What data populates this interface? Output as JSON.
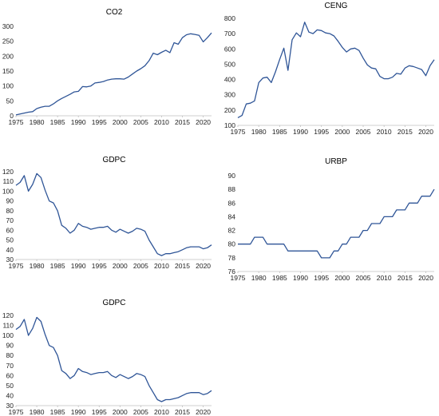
{
  "colors": {
    "series": "#2f5597",
    "axis": "#bfbfbf",
    "text": "#222222"
  },
  "chart_data": [
    {
      "type": "line",
      "title": "CO2",
      "xlim": [
        1975,
        2022
      ],
      "ylim": [
        0,
        300
      ],
      "xticks": [
        1975,
        1980,
        1985,
        1990,
        1995,
        2000,
        2005,
        2010,
        2015,
        2020
      ],
      "yticks": [
        0,
        50,
        100,
        150,
        200,
        250,
        300
      ],
      "x": [
        1975,
        1976,
        1977,
        1978,
        1979,
        1980,
        1981,
        1982,
        1983,
        1984,
        1985,
        1986,
        1987,
        1988,
        1989,
        1990,
        1991,
        1992,
        1993,
        1994,
        1995,
        1996,
        1997,
        1998,
        1999,
        2000,
        2001,
        2002,
        2003,
        2004,
        2005,
        2006,
        2007,
        2008,
        2009,
        2010,
        2011,
        2012,
        2013,
        2014,
        2015,
        2016,
        2017,
        2018,
        2019,
        2020,
        2021,
        2022
      ],
      "values": [
        3,
        6,
        9,
        12,
        14,
        24,
        29,
        32,
        32,
        40,
        50,
        58,
        65,
        72,
        80,
        82,
        98,
        97,
        100,
        110,
        112,
        115,
        120,
        123,
        124,
        124,
        123,
        130,
        140,
        150,
        158,
        168,
        185,
        210,
        205,
        213,
        220,
        212,
        245,
        240,
        262,
        272,
        275,
        273,
        270,
        248,
        262,
        278
      ]
    },
    {
      "type": "line",
      "title": "CENG",
      "xlim": [
        1975,
        2022
      ],
      "ylim": [
        100,
        800
      ],
      "xticks": [
        1975,
        1980,
        1985,
        1990,
        1995,
        2000,
        2005,
        2010,
        2015,
        2020
      ],
      "yticks": [
        100,
        200,
        300,
        400,
        500,
        600,
        700,
        800
      ],
      "x": [
        1975,
        1976,
        1977,
        1978,
        1979,
        1980,
        1981,
        1982,
        1983,
        1984,
        1985,
        1986,
        1987,
        1988,
        1989,
        1990,
        1991,
        1992,
        1993,
        1994,
        1995,
        1996,
        1997,
        1998,
        1999,
        2000,
        2001,
        2002,
        2003,
        2004,
        2005,
        2006,
        2007,
        2008,
        2009,
        2010,
        2011,
        2012,
        2013,
        2014,
        2015,
        2016,
        2017,
        2018,
        2019,
        2020,
        2021,
        2022
      ],
      "values": [
        150,
        165,
        240,
        245,
        260,
        380,
        410,
        415,
        380,
        450,
        530,
        605,
        460,
        660,
        705,
        680,
        775,
        710,
        700,
        725,
        720,
        705,
        700,
        685,
        650,
        610,
        580,
        600,
        605,
        590,
        540,
        495,
        475,
        470,
        420,
        405,
        405,
        415,
        440,
        435,
        475,
        490,
        485,
        475,
        465,
        425,
        490,
        530
      ]
    },
    {
      "type": "line",
      "title": "GDPC",
      "xlim": [
        1975,
        2022
      ],
      "ylim": [
        30,
        120
      ],
      "xticks": [
        1975,
        1980,
        1985,
        1990,
        1995,
        2000,
        2005,
        2010,
        2015,
        2020
      ],
      "yticks": [
        30,
        40,
        50,
        60,
        70,
        80,
        90,
        100,
        110,
        120
      ],
      "x": [
        1975,
        1976,
        1977,
        1978,
        1979,
        1980,
        1981,
        1982,
        1983,
        1984,
        1985,
        1986,
        1987,
        1988,
        1989,
        1990,
        1991,
        1992,
        1993,
        1994,
        1995,
        1996,
        1997,
        1998,
        1999,
        2000,
        2001,
        2002,
        2003,
        2004,
        2005,
        2006,
        2007,
        2008,
        2009,
        2010,
        2011,
        2012,
        2013,
        2014,
        2015,
        2016,
        2017,
        2018,
        2019,
        2020,
        2021,
        2022
      ],
      "values": [
        106,
        109,
        116,
        100,
        107,
        118,
        114,
        101,
        90,
        88,
        80,
        65,
        62,
        57,
        60,
        67,
        64,
        63,
        61,
        62,
        63,
        63,
        64,
        60,
        58,
        61,
        59,
        57,
        59,
        62,
        61,
        59,
        50,
        43,
        36,
        34,
        36,
        36,
        37,
        38,
        40,
        42,
        43,
        43,
        43,
        41,
        42,
        45
      ]
    },
    {
      "type": "line",
      "title": "URBP",
      "xlim": [
        1975,
        2022
      ],
      "ylim": [
        76,
        90
      ],
      "xticks": [
        1975,
        1980,
        1985,
        1990,
        1995,
        2000,
        2005,
        2010,
        2015,
        2020
      ],
      "yticks": [
        76,
        78,
        80,
        82,
        84,
        86,
        88,
        90
      ],
      "x": [
        1975,
        1976,
        1977,
        1978,
        1979,
        1980,
        1981,
        1982,
        1983,
        1984,
        1985,
        1986,
        1987,
        1988,
        1989,
        1990,
        1991,
        1992,
        1993,
        1994,
        1995,
        1996,
        1997,
        1998,
        1999,
        2000,
        2001,
        2002,
        2003,
        2004,
        2005,
        2006,
        2007,
        2008,
        2009,
        2010,
        2011,
        2012,
        2013,
        2014,
        2015,
        2016,
        2017,
        2018,
        2019,
        2020,
        2021,
        2022
      ],
      "values": [
        80,
        80,
        80,
        80,
        81,
        81,
        81,
        80,
        80,
        80,
        80,
        80,
        79,
        79,
        79,
        79,
        79,
        79,
        79,
        79,
        78,
        78,
        78,
        79,
        79,
        80,
        80,
        81,
        81,
        81,
        82,
        82,
        83,
        83,
        83,
        84,
        84,
        84,
        85,
        85,
        85,
        86,
        86,
        86,
        87,
        87,
        87,
        88
      ]
    },
    {
      "type": "line",
      "title": "GDPC",
      "xlim": [
        1975,
        2022
      ],
      "ylim": [
        30,
        120
      ],
      "xticks": [
        1975,
        1980,
        1985,
        1990,
        1995,
        2000,
        2005,
        2010,
        2015,
        2020
      ],
      "yticks": [
        30,
        40,
        50,
        60,
        70,
        80,
        90,
        100,
        110,
        120
      ],
      "x": [
        1975,
        1976,
        1977,
        1978,
        1979,
        1980,
        1981,
        1982,
        1983,
        1984,
        1985,
        1986,
        1987,
        1988,
        1989,
        1990,
        1991,
        1992,
        1993,
        1994,
        1995,
        1996,
        1997,
        1998,
        1999,
        2000,
        2001,
        2002,
        2003,
        2004,
        2005,
        2006,
        2007,
        2008,
        2009,
        2010,
        2011,
        2012,
        2013,
        2014,
        2015,
        2016,
        2017,
        2018,
        2019,
        2020,
        2021,
        2022
      ],
      "values": [
        106,
        109,
        116,
        100,
        107,
        118,
        114,
        101,
        90,
        88,
        80,
        65,
        62,
        57,
        60,
        67,
        64,
        63,
        61,
        62,
        63,
        63,
        64,
        60,
        58,
        61,
        59,
        57,
        59,
        62,
        61,
        59,
        50,
        43,
        36,
        34,
        36,
        36,
        37,
        38,
        40,
        42,
        43,
        43,
        43,
        41,
        42,
        45
      ]
    }
  ]
}
